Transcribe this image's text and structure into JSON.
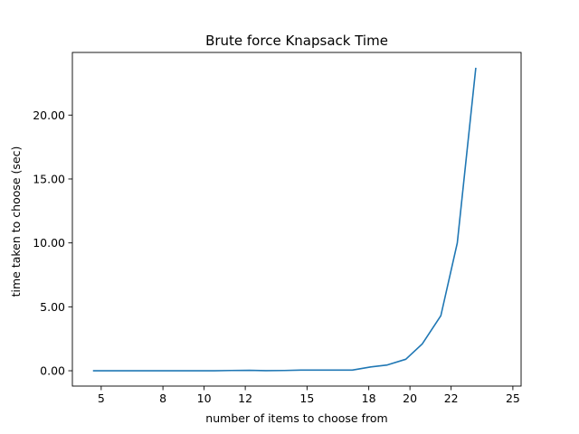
{
  "chart_data": {
    "type": "line",
    "title": "Brute force Knapsack Time",
    "xlabel": "number of items to choose from",
    "ylabel": "time taken to choose (sec)",
    "xlim": [
      3.6,
      25.4
    ],
    "ylim": [
      -1.2,
      24.9
    ],
    "x_ticks": [
      5,
      8,
      10,
      12,
      15,
      18,
      20,
      22,
      25
    ],
    "x_tick_labels": [
      "5",
      "8",
      "10",
      "12",
      "15",
      "18",
      "20",
      "22",
      "25"
    ],
    "y_ticks": [
      0,
      5,
      10,
      15,
      20
    ],
    "y_tick_labels": [
      "0.00",
      "5.00",
      "10.00",
      "15.00",
      "20.00"
    ],
    "grid": false,
    "series": [
      {
        "color": "#1f77b4",
        "x": [
          4.6,
          5.4,
          6.3,
          7.1,
          8.0,
          8.8,
          9.6,
          10.5,
          11.3,
          12.2,
          13.0,
          13.9,
          14.7,
          15.5,
          16.4,
          17.2,
          18.1,
          18.9,
          19.8,
          20.6,
          21.5,
          22.3,
          23.2
        ],
        "y": [
          0.0,
          0.0,
          0.0,
          0.0,
          0.0,
          0.0,
          0.0,
          0.0,
          0.02,
          0.03,
          0.01,
          0.02,
          0.05,
          0.05,
          0.05,
          0.05,
          0.3,
          0.45,
          0.9,
          2.1,
          4.3,
          10.0,
          23.7
        ]
      }
    ]
  }
}
